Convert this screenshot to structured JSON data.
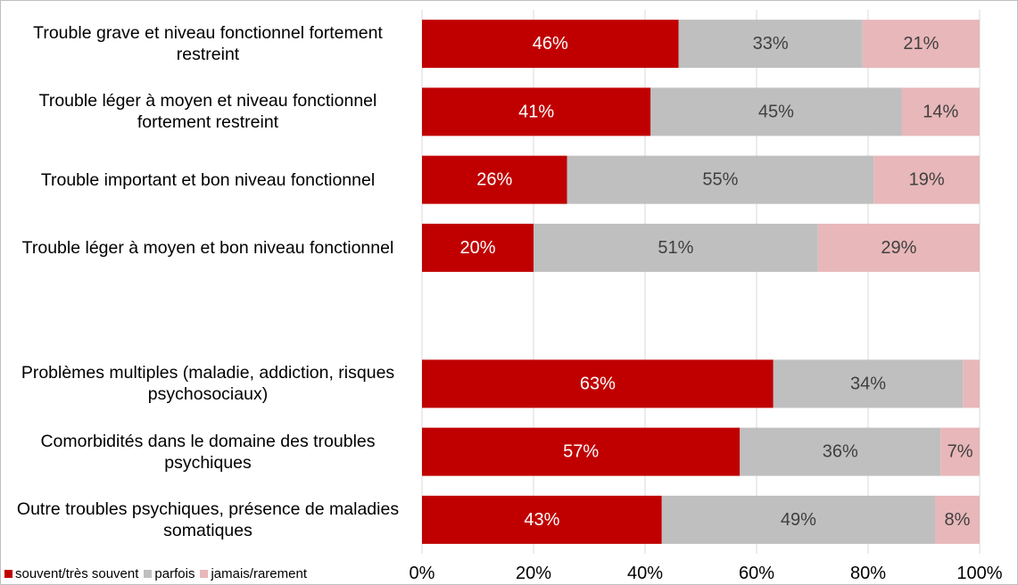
{
  "chart_data": {
    "type": "bar_stacked_horizontal",
    "categories": [
      "Trouble grave et niveau fonctionnel fortement restreint",
      "Trouble léger à moyen et niveau fonctionnel fortement restreint",
      "Trouble important et bon niveau fonctionnel",
      "Trouble léger à moyen et bon niveau fonctionnel",
      null,
      "Problèmes multiples (maladie, addiction, risques psychosociaux)",
      "Comorbidités dans le domaine des troubles psychiques",
      "Outre troubles psychiques, présence de maladies somatiques"
    ],
    "series": [
      {
        "name": "souvent/très souvent",
        "color": "#c00000",
        "values": [
          46,
          41,
          26,
          20,
          null,
          63,
          57,
          43
        ],
        "value_labels": [
          "46%",
          "41%",
          "26%",
          "20%",
          null,
          "63%",
          "57%",
          "43%"
        ]
      },
      {
        "name": "parfois",
        "color": "#bfbfbf",
        "values": [
          33,
          45,
          55,
          51,
          null,
          34,
          36,
          49
        ],
        "value_labels": [
          "33%",
          "45%",
          "55%",
          "51%",
          null,
          "34%",
          "36%",
          "49%"
        ]
      },
      {
        "name": "jamais/rarement",
        "color": "#e8b7b9",
        "values": [
          21,
          14,
          19,
          29,
          null,
          3,
          7,
          8
        ],
        "value_labels": [
          "21%",
          "14%",
          "19%",
          "29%",
          null,
          null,
          "7%",
          "8%"
        ]
      }
    ],
    "xlim": [
      0,
      100
    ],
    "xticks": [
      {
        "value": 0,
        "label": "0%"
      },
      {
        "value": 20,
        "label": "20%"
      },
      {
        "value": 40,
        "label": "40%"
      },
      {
        "value": 60,
        "label": "60%"
      },
      {
        "value": 80,
        "label": "80%"
      },
      {
        "value": 100,
        "label": "100%"
      }
    ],
    "grid": true,
    "legend": "bottom-left"
  }
}
